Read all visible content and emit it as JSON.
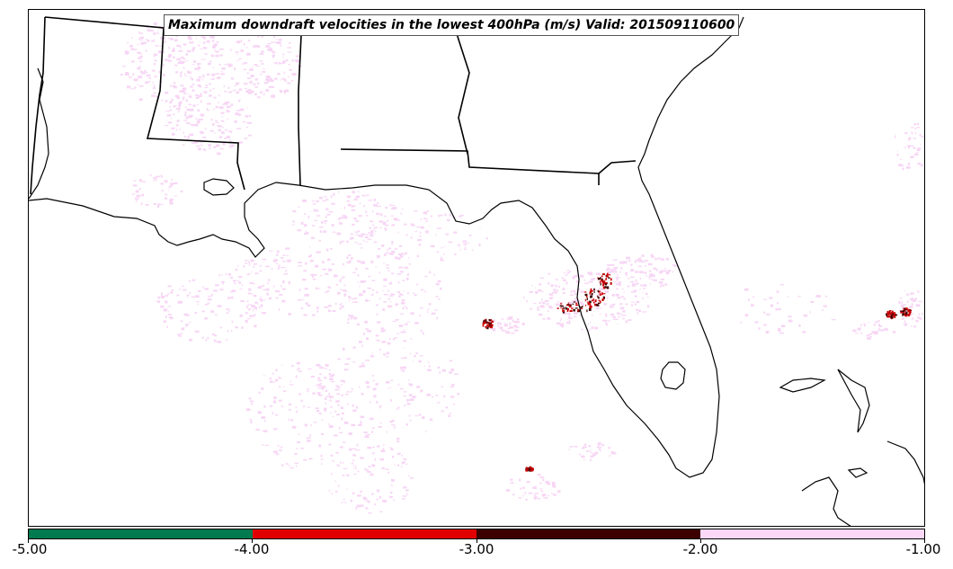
{
  "map": {
    "title": "Maximum downdraft velocities in the lowest 400hPa (m/s) Valid: 201509110600",
    "region": "Southeastern United States and Gulf of Mexico",
    "colors": {
      "coastline": "#000000",
      "field_light": "#f7d6f5",
      "field_dark_red": "#cc0000",
      "field_darkest": "#3d0000"
    }
  },
  "colorbar": {
    "colors": [
      "#007a4e",
      "#e00000",
      "#3d0000",
      "#fbd8f7"
    ],
    "tick_labels": [
      "-5.00",
      "-4.00",
      "-3.00",
      "-2.00",
      "-1.00"
    ]
  }
}
